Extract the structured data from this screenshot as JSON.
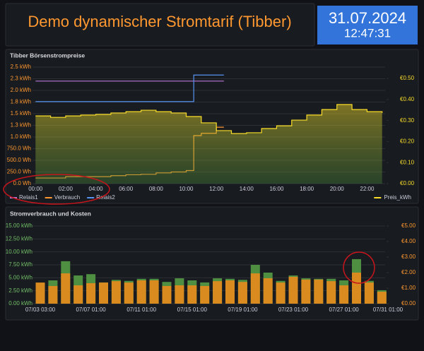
{
  "header": {
    "title": "Demo dynamischer Stromtarif (Tibber)"
  },
  "clock": {
    "date": "31.07.2024",
    "time": "12:47:31"
  },
  "chart_data": [
    {
      "type": "line",
      "title": "Tibber Börsenstrompreise",
      "grid": true,
      "step": true,
      "xlim": [
        -0.2,
        23.2
      ],
      "xticks": [
        {
          "value": 0,
          "label": "00:00"
        },
        {
          "value": 2,
          "label": "02:00"
        },
        {
          "value": 4,
          "label": "04:00"
        },
        {
          "value": 6,
          "label": "06:00"
        },
        {
          "value": 8,
          "label": "08:00"
        },
        {
          "value": 10,
          "label": "10:00"
        },
        {
          "value": 12,
          "label": "12:00"
        },
        {
          "value": 14,
          "label": "14:00"
        },
        {
          "value": 16,
          "label": "16:00"
        },
        {
          "value": 18,
          "label": "18:00"
        },
        {
          "value": 20,
          "label": "20:00"
        },
        {
          "value": 22,
          "label": "22:00"
        }
      ],
      "ylim": [
        0,
        2500
      ],
      "yticks": [
        {
          "value": 0,
          "label": "0.0 Wh"
        },
        {
          "value": 250,
          "label": "250.0 Wh"
        },
        {
          "value": 500,
          "label": "500.0 Wh"
        },
        {
          "value": 750,
          "label": "750.0 Wh"
        },
        {
          "value": 1000,
          "label": "1.0 kWh"
        },
        {
          "value": 1250,
          "label": "1.3 kWh"
        },
        {
          "value": 1500,
          "label": "1.5 kWh"
        },
        {
          "value": 1750,
          "label": "1.8 kWh"
        },
        {
          "value": 2000,
          "label": "2.0 kWh"
        },
        {
          "value": 2250,
          "label": "2.3 kWh"
        },
        {
          "value": 2500,
          "label": "2.5 kWh"
        }
      ],
      "y2lim": [
        0,
        0.554
      ],
      "y2ticks": [
        {
          "value": 0,
          "label": "€0.00"
        },
        {
          "value": 0.1,
          "label": "€0.10"
        },
        {
          "value": 0.2,
          "label": "€0.20"
        },
        {
          "value": 0.3,
          "label": "€0.30"
        },
        {
          "value": 0.4,
          "label": "€0.40"
        },
        {
          "value": 0.5,
          "label": "€0.50"
        }
      ],
      "series": [
        {
          "name": "Relais1",
          "color": "#b877d9",
          "x": [
            0,
            12.5
          ],
          "values": [
            2200,
            2200
          ]
        },
        {
          "name": "Verbrauch",
          "color": "#ff9830",
          "x": [
            0,
            1,
            2,
            3,
            4,
            5,
            6,
            7,
            8,
            9,
            10,
            10.5,
            11,
            12,
            12.5
          ],
          "values": [
            120,
            120,
            150,
            150,
            150,
            170,
            190,
            200,
            230,
            250,
            280,
            1030,
            1080,
            1210,
            1210
          ]
        },
        {
          "name": "Relais2",
          "color": "#5794f2",
          "x": [
            0,
            10.5,
            12.5
          ],
          "values": [
            1760,
            2330,
            2330
          ]
        },
        {
          "name": "Preis_kWh",
          "color": "#fade2a",
          "axis": "y2",
          "fill": true,
          "x": [
            0,
            1,
            2,
            3,
            4,
            5,
            6,
            7,
            8,
            9,
            10,
            11,
            12,
            13,
            14,
            15,
            16,
            17,
            18,
            19,
            20,
            21,
            22,
            23
          ],
          "values": [
            0.322,
            0.315,
            0.322,
            0.326,
            0.329,
            0.336,
            0.342,
            0.349,
            0.342,
            0.336,
            0.319,
            0.289,
            0.252,
            0.238,
            0.242,
            0.262,
            0.275,
            0.302,
            0.326,
            0.352,
            0.376,
            0.352,
            0.342,
            0.336
          ]
        }
      ]
    },
    {
      "type": "bar",
      "title": "Stromverbrauch und Kosten",
      "grid": true,
      "categories": [
        "07/03 03:00",
        null,
        null,
        null,
        "07/07 01:00",
        null,
        null,
        null,
        "07/11 01:00",
        null,
        null,
        null,
        "07/15 01:00",
        null,
        null,
        null,
        "07/19 01:00",
        null,
        null,
        null,
        "07/23 01:00",
        null,
        null,
        null,
        "07/27 01:00",
        null,
        null,
        null,
        "07/31 01:00"
      ],
      "ylim": [
        0,
        15
      ],
      "yticks": [
        {
          "value": 0,
          "label": "0.00 kWh"
        },
        {
          "value": 2.5,
          "label": "2.50 kWh"
        },
        {
          "value": 5,
          "label": "5.00 kWh"
        },
        {
          "value": 7.5,
          "label": "7.50 kWh"
        },
        {
          "value": 10,
          "label": "10.00 kWh"
        },
        {
          "value": 12.5,
          "label": "12.50 kWh"
        },
        {
          "value": 15,
          "label": "15.00 kWh"
        }
      ],
      "y2lim": [
        0,
        5
      ],
      "y2ticks": [
        {
          "value": 0,
          "label": "€0.00"
        },
        {
          "value": 1,
          "label": "€1.00"
        },
        {
          "value": 2,
          "label": "€2.00"
        },
        {
          "value": 3,
          "label": "€3.00"
        },
        {
          "value": 4,
          "label": "€4.00"
        },
        {
          "value": 5,
          "label": "€5.00"
        }
      ],
      "series": [
        {
          "color": "#4f8f41",
          "values": [
            4.0,
            4.5,
            8.2,
            5.45,
            5.7,
            4.1,
            4.6,
            4.4,
            4.8,
            4.8,
            4.2,
            4.9,
            4.5,
            4.1,
            4.9,
            4.8,
            4.6,
            7.5,
            6.0,
            4.4,
            5.45,
            4.9,
            4.8,
            4.8,
            4.5,
            8.6,
            4.4,
            2.6,
            null
          ]
        },
        {
          "color": "#d98b1f",
          "axis": "y2",
          "values": [
            1.36,
            1.14,
            1.95,
            1.18,
            1.32,
            1.36,
            1.45,
            1.36,
            1.5,
            1.5,
            1.14,
            1.18,
            1.18,
            1.14,
            1.45,
            1.5,
            1.4,
            1.95,
            1.64,
            1.36,
            1.73,
            1.55,
            1.55,
            1.45,
            1.18,
            2.0,
            1.36,
            0.77,
            null
          ]
        }
      ]
    }
  ]
}
